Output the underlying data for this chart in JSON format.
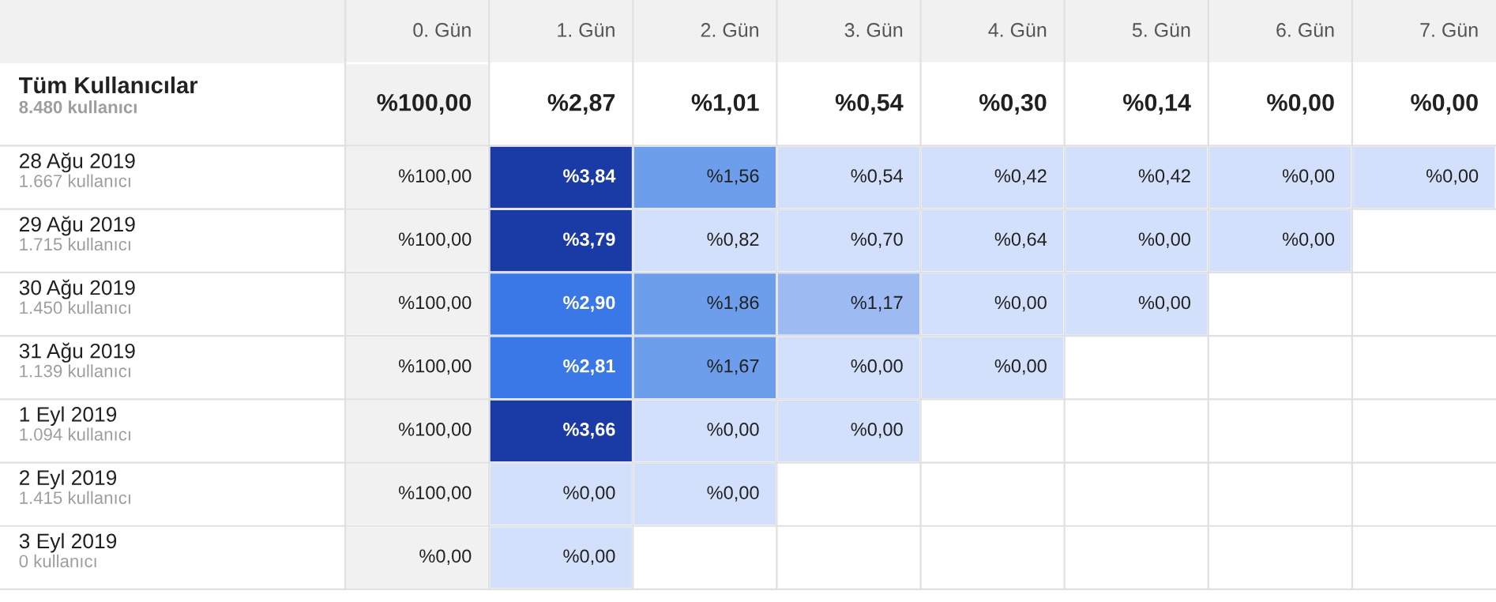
{
  "chart_data": {
    "type": "heatmap",
    "categories": [
      "0. Gün",
      "1. Gün",
      "2. Gün",
      "3. Gün",
      "4. Gün",
      "5. Gün",
      "6. Gün",
      "7. Gün"
    ],
    "y_categories": [
      "Tüm Kullanıcılar\n8.480 kullanıcı",
      "28 Ağu 2019\n1.667 kullanıcı",
      "29 Ağu 2019\n1.715 kullanıcı",
      "30 Ağu 2019\n1.450 kullanıcı",
      "31 Ağu 2019\n1.139 kullanıcı",
      "1 Eyl 2019\n1.094 kullanıcı",
      "2 Eyl 2019\n1.415 kullanıcı",
      "3 Eyl 2019\n0 kullanıcı"
    ],
    "cells": [
      [
        100,
        2.87,
        1.01,
        0.54,
        0.3,
        0.14,
        0.0,
        0.0
      ],
      [
        100,
        3.84,
        1.56,
        0.54,
        0.42,
        0.42,
        0.0,
        0.0
      ],
      [
        100,
        3.79,
        0.82,
        0.7,
        0.64,
        0.0,
        0.0,
        null
      ],
      [
        100,
        2.9,
        1.86,
        1.17,
        0.0,
        0.0,
        null,
        null
      ],
      [
        100,
        2.81,
        1.67,
        0.0,
        0.0,
        null,
        null,
        null
      ],
      [
        100,
        3.66,
        0.0,
        0.0,
        null,
        null,
        null,
        null
      ],
      [
        100,
        0.0,
        0.0,
        null,
        null,
        null,
        null,
        null
      ],
      [
        0.0,
        0.0,
        null,
        null,
        null,
        null,
        null,
        null
      ]
    ],
    "cell_labels": [
      [
        "%100,00",
        "%2,87",
        "%1,01",
        "%0,54",
        "%0,30",
        "%0,14",
        "%0,00",
        "%0,00"
      ],
      [
        "%100,00",
        "%3,84",
        "%1,56",
        "%0,54",
        "%0,42",
        "%0,42",
        "%0,00",
        "%0,00"
      ],
      [
        "%100,00",
        "%3,79",
        "%0,82",
        "%0,70",
        "%0,64",
        "%0,00",
        "%0,00",
        null
      ],
      [
        "%100,00",
        "%2,90",
        "%1,86",
        "%1,17",
        "%0,00",
        "%0,00",
        null,
        null
      ],
      [
        "%100,00",
        "%2,81",
        "%1,67",
        "%0,00",
        "%0,00",
        null,
        null,
        null
      ],
      [
        "%100,00",
        "%3,66",
        "%0,00",
        "%0,00",
        null,
        null,
        null,
        null
      ],
      [
        "%100,00",
        "%0,00",
        "%0,00",
        null,
        null,
        null,
        null,
        null
      ],
      [
        "%0,00",
        "%0,00",
        null,
        null,
        null,
        null,
        null,
        null
      ]
    ]
  }
}
